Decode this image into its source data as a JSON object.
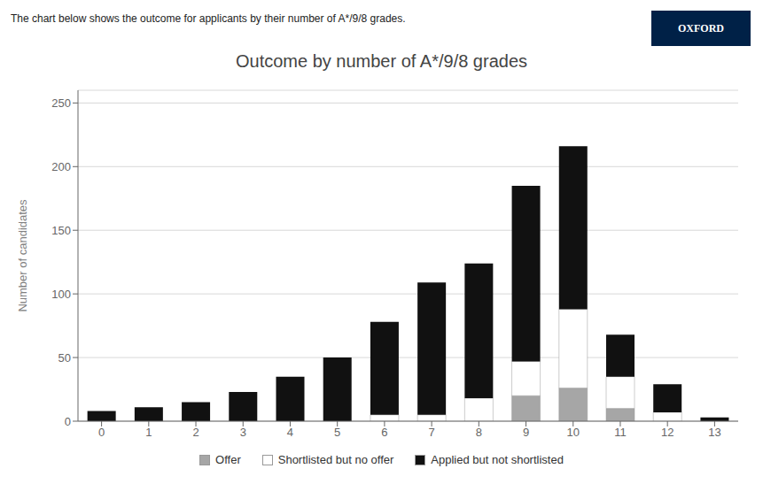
{
  "chart_data": {
    "type": "bar",
    "title": "Outcome by number of A*/9/8 grades",
    "subtitle": "The chart below shows the outcome for applicants by their number of A*/9/8 grades.",
    "annotations": [
      "OXFORD"
    ],
    "ylabel": "Number of candidates",
    "categories": [
      0,
      1,
      2,
      3,
      4,
      5,
      6,
      7,
      8,
      9,
      10,
      11,
      12,
      13
    ],
    "series": [
      {
        "name": "Offer",
        "color": "#a6a6a6",
        "values": [
          0,
          0,
          0,
          0,
          0,
          0,
          0,
          0,
          0,
          20,
          26,
          10,
          0,
          0
        ]
      },
      {
        "name": "Shortlisted but no offer",
        "color": "#ffffff",
        "values": [
          0,
          0,
          0,
          0,
          0,
          0,
          5,
          5,
          18,
          27,
          62,
          25,
          7,
          0
        ]
      },
      {
        "name": "Applied but not shortlisted",
        "color": "#111111",
        "values": [
          8,
          11,
          15,
          23,
          35,
          50,
          73,
          104,
          106,
          138,
          128,
          33,
          22,
          3
        ]
      }
    ],
    "stacked": true,
    "ylim": [
      0,
      260
    ],
    "yticks": [
      0,
      50,
      100,
      150,
      200,
      250
    ],
    "grid": true,
    "legend": "bottom"
  }
}
